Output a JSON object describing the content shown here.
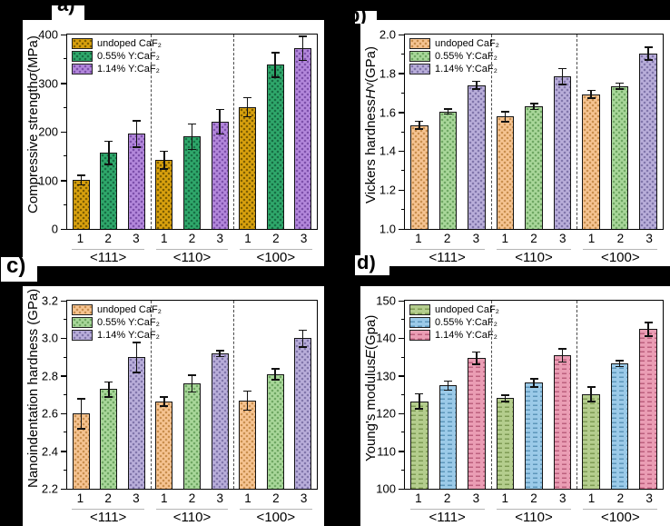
{
  "figure": {
    "background": "#000000",
    "panel_background": "#ffffff",
    "panel_labels": {
      "a": "a)",
      "b": "b)",
      "c": "c)",
      "d": "d)"
    }
  },
  "legend_labels": [
    "undoped CaF₂",
    "0.55% Y:CaF₂",
    "1.14% Y:CaF₂"
  ],
  "chart_data": [
    {
      "id": "a",
      "panel_label": "a)",
      "type": "bar",
      "ylabel": "Compressive strength σ (MPa)",
      "ylabel_parts": [
        {
          "text": "Compressive strength "
        },
        {
          "text": "σ",
          "italic": true
        },
        {
          "text": " (MPa)"
        }
      ],
      "ylim": [
        0,
        400
      ],
      "yticks": [
        {
          "value": 0,
          "label": "0"
        },
        {
          "value": 100,
          "label": "100"
        },
        {
          "value": 200,
          "label": "200"
        },
        {
          "value": 300,
          "label": "300"
        },
        {
          "value": 400,
          "label": "400"
        }
      ],
      "yminors": [
        50,
        150,
        250,
        350
      ],
      "categories": [
        "<111>",
        "<110>",
        "<100>"
      ],
      "x_tick_labels": [
        "1",
        "2",
        "3"
      ],
      "pattern": "dots",
      "separator": "dashed",
      "legend_position": "top-left",
      "grid": false,
      "series": [
        {
          "name": "undoped CaF₂",
          "color": "#D9A10E",
          "pattern_color": "#7d5e00",
          "values": [
            101,
            142,
            251
          ],
          "errors": [
            10,
            18,
            20
          ]
        },
        {
          "name": "0.55% Y:CaF₂",
          "color": "#2FA86B",
          "pattern_color": "#176e44",
          "values": [
            157,
            190,
            338
          ],
          "errors": [
            24,
            26,
            25
          ]
        },
        {
          "name": "1.14% Y:CaF₂",
          "color": "#B388DB",
          "pattern_color": "#7d50ab",
          "values": [
            196,
            221,
            372
          ],
          "errors": [
            27,
            25,
            25
          ]
        }
      ]
    },
    {
      "id": "b",
      "panel_label": "b)",
      "type": "bar",
      "ylabel": "Vickers hardness HV (GPa)",
      "ylabel_parts": [
        {
          "text": "Vickers hardness "
        },
        {
          "text": "H",
          "italic": true
        },
        {
          "text": "V",
          "sub": true
        },
        {
          "text": " (GPa)"
        }
      ],
      "ylim": [
        1.0,
        2.0
      ],
      "yticks": [
        {
          "value": 1.0,
          "label": "1.0"
        },
        {
          "value": 1.2,
          "label": "1.2"
        },
        {
          "value": 1.4,
          "label": "1.4"
        },
        {
          "value": 1.6,
          "label": "1.6"
        },
        {
          "value": 1.8,
          "label": "1.8"
        },
        {
          "value": 2.0,
          "label": "2.0"
        }
      ],
      "yminors": [
        1.1,
        1.3,
        1.5,
        1.7,
        1.9
      ],
      "categories": [
        "<111>",
        "<110>",
        "<100>"
      ],
      "x_tick_labels": [
        "1",
        "2",
        "3"
      ],
      "pattern": "dots",
      "separator": "dashed",
      "legend_position": "top-left",
      "grid": false,
      "series": [
        {
          "name": "undoped CaF₂",
          "color": "#F6C492",
          "pattern_color": "#c98f4e",
          "values": [
            1.535,
            1.578,
            1.693
          ],
          "errors": [
            0.02,
            0.025,
            0.02
          ]
        },
        {
          "name": "0.55% Y:CaF₂",
          "color": "#A9D79A",
          "pattern_color": "#6fa763",
          "values": [
            1.605,
            1.63,
            1.736
          ],
          "errors": [
            0.012,
            0.015,
            0.015
          ]
        },
        {
          "name": "1.14% Y:CaF₂",
          "color": "#B9AEDA",
          "pattern_color": "#8176ab",
          "values": [
            1.74,
            1.785,
            1.903
          ],
          "errors": [
            0.02,
            0.04,
            0.032
          ]
        }
      ]
    },
    {
      "id": "c",
      "panel_label": "c)",
      "type": "bar",
      "ylabel": "Nanoindentation hardness (GPa)",
      "ylabel_parts": [
        {
          "text": "Nanoindentation hardness (GPa)"
        }
      ],
      "ylim": [
        2.2,
        3.2
      ],
      "yticks": [
        {
          "value": 2.2,
          "label": "2.2"
        },
        {
          "value": 2.4,
          "label": "2.4"
        },
        {
          "value": 2.6,
          "label": "2.6"
        },
        {
          "value": 2.8,
          "label": "2.8"
        },
        {
          "value": 3.0,
          "label": "3.0"
        },
        {
          "value": 3.2,
          "label": "3.2"
        }
      ],
      "yminors": [
        2.3,
        2.5,
        2.7,
        2.9,
        3.1
      ],
      "categories": [
        "<111>",
        "<110>",
        "<100>"
      ],
      "x_tick_labels": [
        "1",
        "2",
        "3"
      ],
      "pattern": "dots",
      "separator": "dashed",
      "legend_position": "top-left",
      "grid": false,
      "series": [
        {
          "name": "undoped CaF₂",
          "color": "#F6C492",
          "pattern_color": "#c98f4e",
          "values": [
            2.6,
            2.665,
            2.67
          ],
          "errors": [
            0.08,
            0.025,
            0.05
          ]
        },
        {
          "name": "0.55% Y:CaF₂",
          "color": "#A9D79A",
          "pattern_color": "#6fa763",
          "values": [
            2.73,
            2.76,
            2.81
          ],
          "errors": [
            0.04,
            0.045,
            0.03
          ]
        },
        {
          "name": "1.14% Y:CaF₂",
          "color": "#B9AEDA",
          "pattern_color": "#8176ab",
          "values": [
            2.9,
            2.92,
            3.0
          ],
          "errors": [
            0.08,
            0.015,
            0.045
          ]
        }
      ]
    },
    {
      "id": "d",
      "panel_label": "d)",
      "type": "bar",
      "ylabel": "Young's modulus E (Gpa)",
      "ylabel_parts": [
        {
          "text": "Young's modulus "
        },
        {
          "text": "E",
          "italic": true
        },
        {
          "text": " (Gpa)"
        }
      ],
      "ylim": [
        100,
        150
      ],
      "yticks": [
        {
          "value": 100,
          "label": "100"
        },
        {
          "value": 110,
          "label": "110"
        },
        {
          "value": 120,
          "label": "120"
        },
        {
          "value": 130,
          "label": "130"
        },
        {
          "value": 140,
          "label": "140"
        },
        {
          "value": 150,
          "label": "150"
        }
      ],
      "yminors": [
        105,
        115,
        125,
        135,
        145
      ],
      "categories": [
        "<111>",
        "<110>",
        "<100>"
      ],
      "x_tick_labels": [
        "1",
        "2",
        "3"
      ],
      "pattern": "dashes",
      "separator": "dashed",
      "legend_position": "top-left",
      "grid": false,
      "series": [
        {
          "name": "undoped CaF₂",
          "color": "#B4CD8D",
          "pattern_color": "#7e9b54",
          "values": [
            123.3,
            124.1,
            125.2
          ],
          "errors": [
            2.0,
            0.9,
            1.9
          ]
        },
        {
          "name": "0.55% Y:CaF₂",
          "color": "#9BCAE8",
          "pattern_color": "#5d96ba",
          "values": [
            127.5,
            128.2,
            133.3
          ],
          "errors": [
            1.2,
            1.1,
            0.8
          ]
        },
        {
          "name": "1.14% Y:CaF₂",
          "color": "#EA9DB4",
          "pattern_color": "#bc607e",
          "values": [
            134.8,
            135.5,
            142.5
          ],
          "errors": [
            1.6,
            1.8,
            1.8
          ]
        }
      ]
    }
  ]
}
